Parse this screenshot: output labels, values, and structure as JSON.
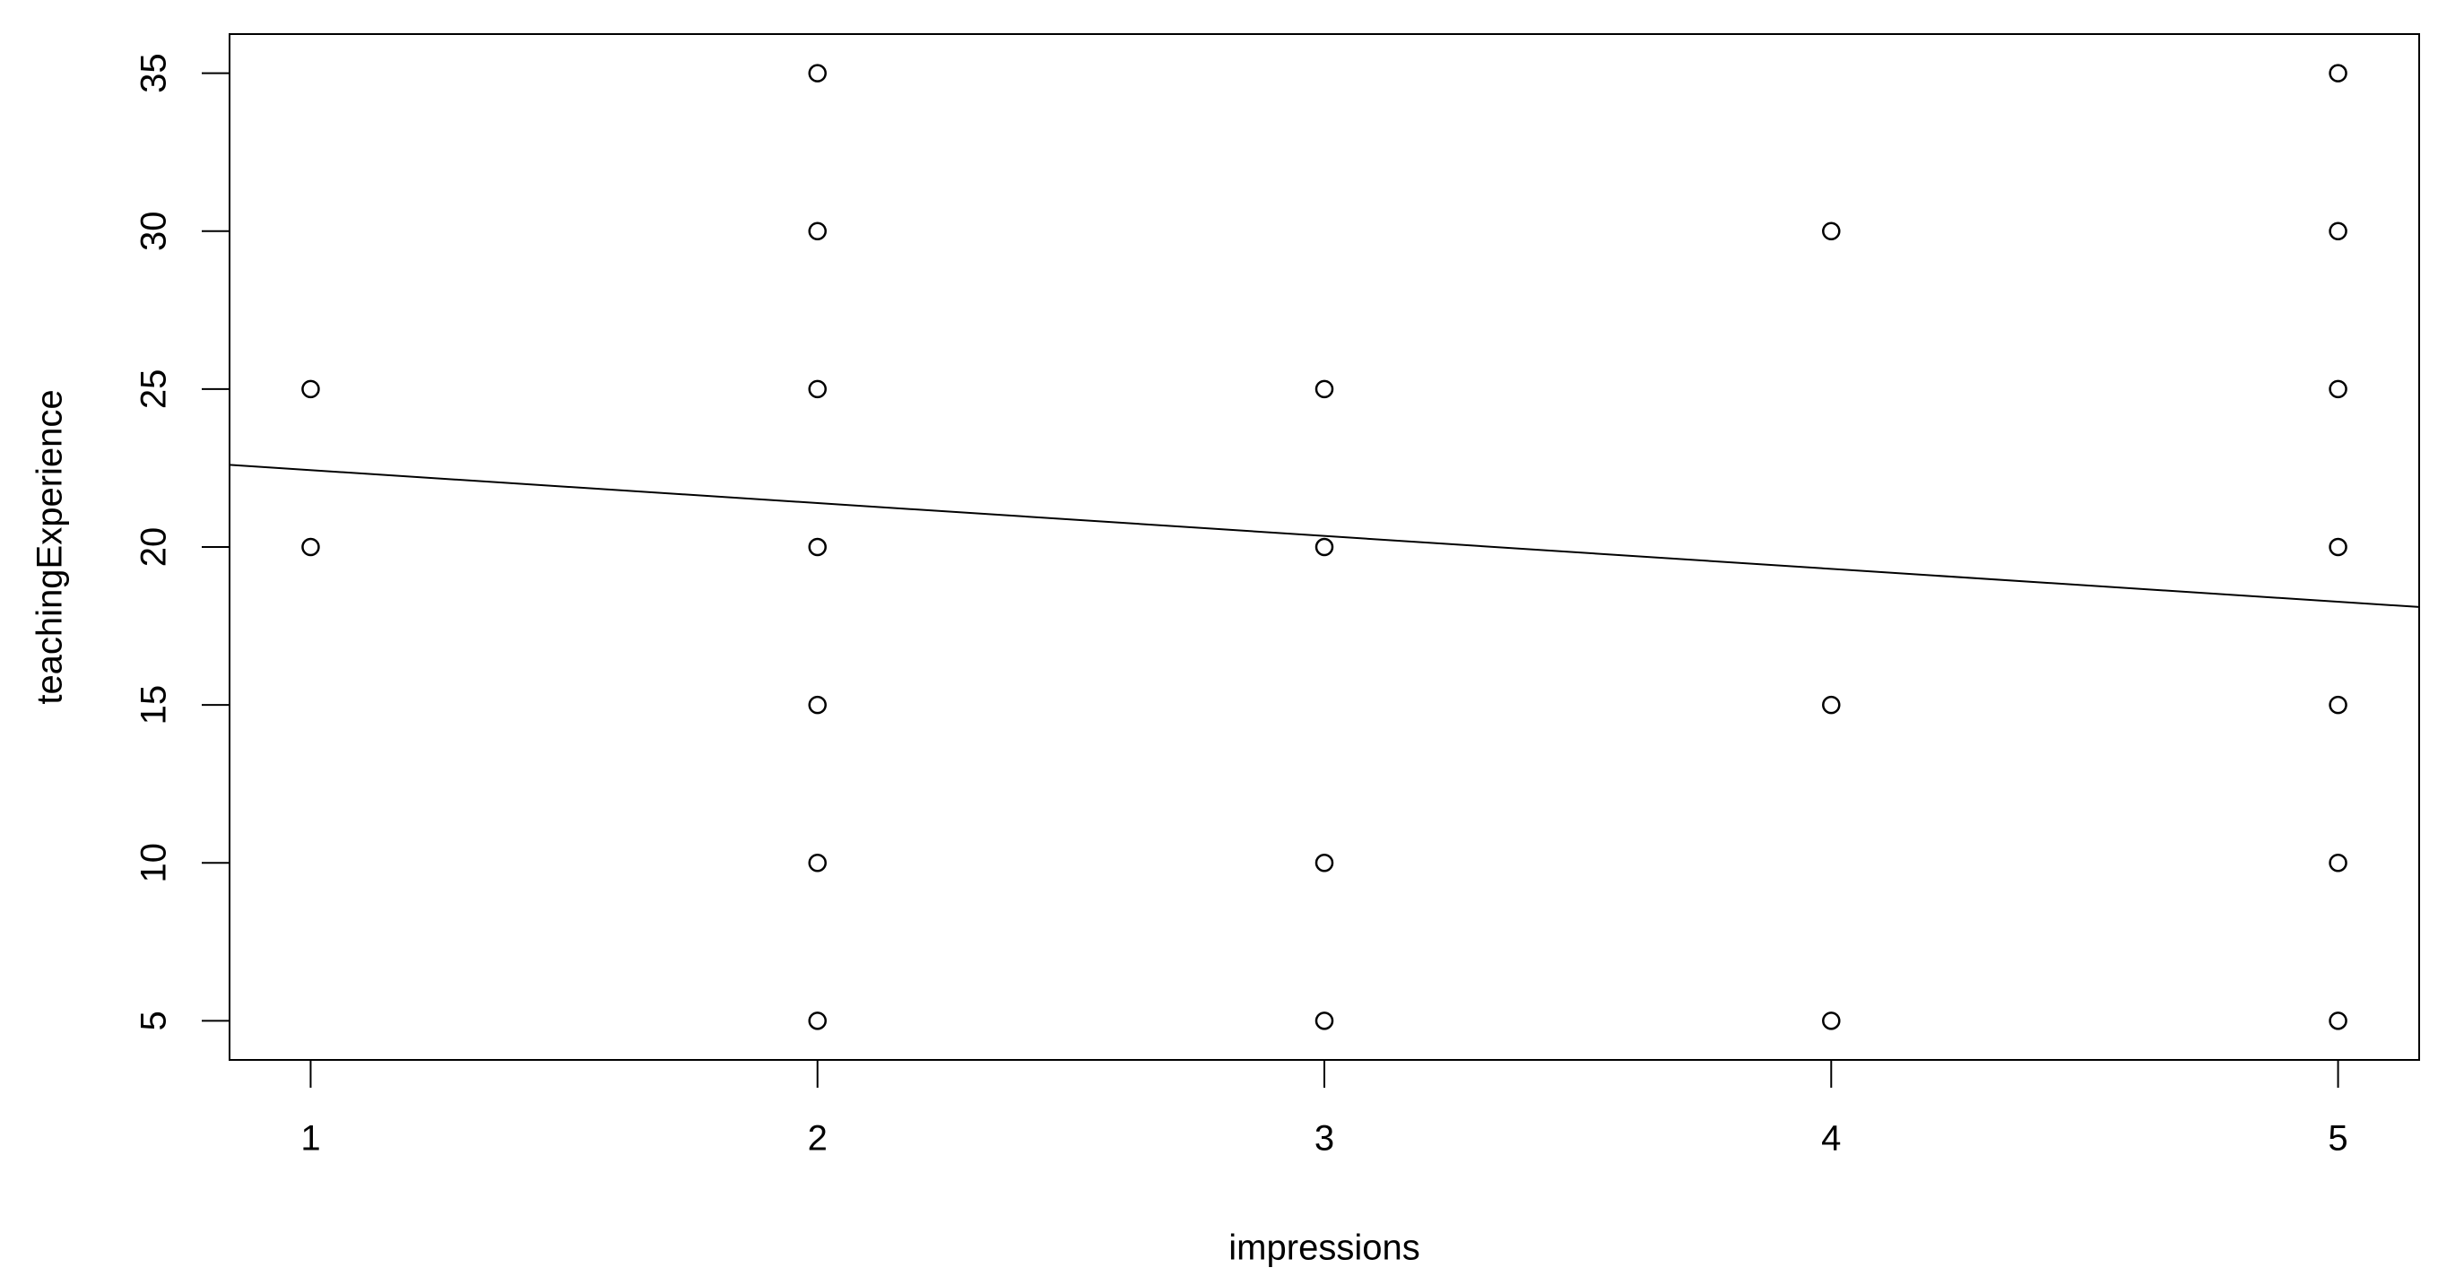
{
  "chart_data": {
    "type": "scatter",
    "x_label": "impressions",
    "y_label": "teachingExperience",
    "x": [
      1,
      1,
      2,
      2,
      2,
      2,
      2,
      2,
      2,
      3,
      3,
      3,
      3,
      4,
      4,
      4,
      5,
      5,
      5,
      5,
      5,
      5,
      5
    ],
    "values": [
      25,
      20,
      35,
      30,
      25,
      20,
      15,
      10,
      5,
      25,
      20,
      10,
      5,
      30,
      15,
      5,
      35,
      30,
      25,
      20,
      15,
      10,
      5
    ],
    "trend_line": {
      "x": [
        0.84,
        5.16
      ],
      "values": [
        22.6,
        18.1
      ]
    },
    "color": "#000000",
    "xlim": [
      0.84,
      5.16
    ],
    "ylim": [
      3.76,
      36.24
    ],
    "xticks": [
      1,
      2,
      3,
      4,
      5
    ],
    "yticks": [
      5,
      10,
      15,
      20,
      25,
      30,
      35
    ],
    "grid": false
  }
}
